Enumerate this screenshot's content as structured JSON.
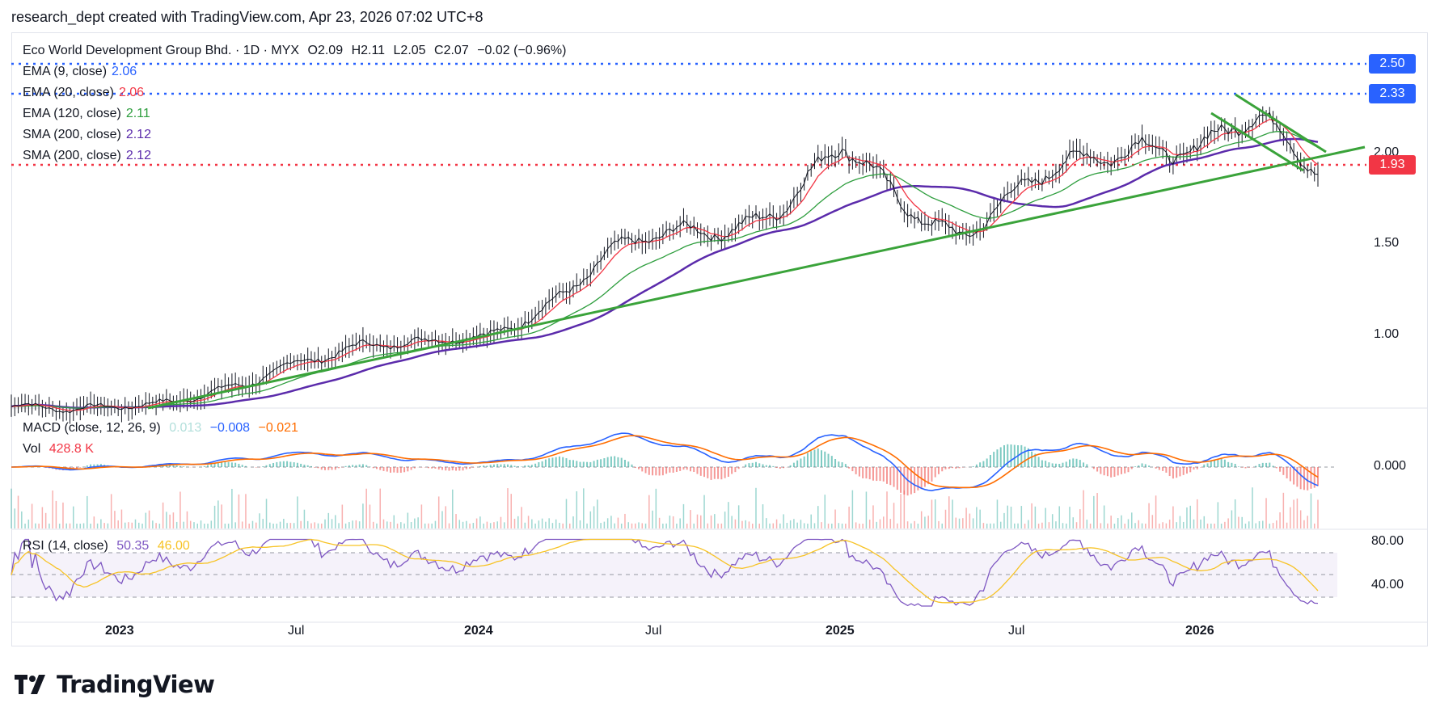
{
  "header": {
    "text": "research_dept created with TradingView.com, Apr 23, 2026 07:02 UTC+8"
  },
  "legend": {
    "title": "Eco World Development Group Bhd. · 1D · MYX",
    "ohlc": {
      "o": "O2.09",
      "h": "H2.11",
      "l": "L2.05",
      "c": "C2.07",
      "chg": "−0.02 (−0.96%)"
    },
    "indicators": [
      {
        "label": "EMA (9, close)",
        "value": "2.06",
        "color": "#2962ff"
      },
      {
        "label": "EMA (20, close)",
        "value": "2.06",
        "color": "#f23645"
      },
      {
        "label": "EMA (120, close)",
        "value": "2.11",
        "color": "#2e9e3e"
      },
      {
        "label": "SMA (200, close)",
        "value": "2.12",
        "color": "#5b2bab"
      },
      {
        "label": "SMA (200, close)",
        "value": "2.12",
        "color": "#5b2bab"
      }
    ],
    "macd": {
      "label": "MACD (close, 12, 26, 9)",
      "v1": "0.013",
      "v2": "−0.008",
      "v3": "−0.021"
    },
    "vol": {
      "label": "Vol",
      "value": "428.8 K"
    },
    "rsi": {
      "label": "RSI (14, close)",
      "v1": "50.35",
      "v2": "46.00"
    }
  },
  "price_badges": [
    {
      "value": "2.50",
      "color": "#2962ff"
    },
    {
      "value": "2.33",
      "color": "#2962ff"
    },
    {
      "value": "1.93",
      "color": "#f23645"
    }
  ],
  "price_axis": [
    "2.00",
    "1.50",
    "1.00"
  ],
  "macd_axis": [
    "0.000"
  ],
  "rsi_axis": [
    "80.00",
    "40.00"
  ],
  "time_axis": [
    "2023",
    "Jul",
    "2024",
    "Jul",
    "2025",
    "Jul",
    "2026"
  ],
  "logo": {
    "text": "TradingView"
  },
  "chart_data": {
    "type": "line",
    "title": "Eco World Development Group Bhd. · 1D · MYX",
    "x": [
      "2022-10",
      "2022-12",
      "2023-02",
      "2023-04",
      "2023-06",
      "2023-08",
      "2023-10",
      "2023-12",
      "2024-01",
      "2024-03",
      "2024-05",
      "2024-07",
      "2024-09",
      "2024-11",
      "2024-12",
      "2025-02",
      "2025-04",
      "2025-06",
      "2025-08",
      "2025-10",
      "2025-12",
      "2026-02",
      "2026-04"
    ],
    "series": [
      {
        "name": "Price",
        "values": [
          0.72,
          0.68,
          0.74,
          0.78,
          0.82,
          0.98,
          1.1,
          1.05,
          1.08,
          1.3,
          1.55,
          1.63,
          1.72,
          1.85,
          2.1,
          1.85,
          1.7,
          1.88,
          2.05,
          2.22,
          2.12,
          2.26,
          2.07
        ]
      }
    ],
    "ylim": [
      0.75,
      2.5
    ],
    "levels": {
      "blue_top": 2.5,
      "blue_mid": 2.33,
      "red": 1.93
    }
  }
}
